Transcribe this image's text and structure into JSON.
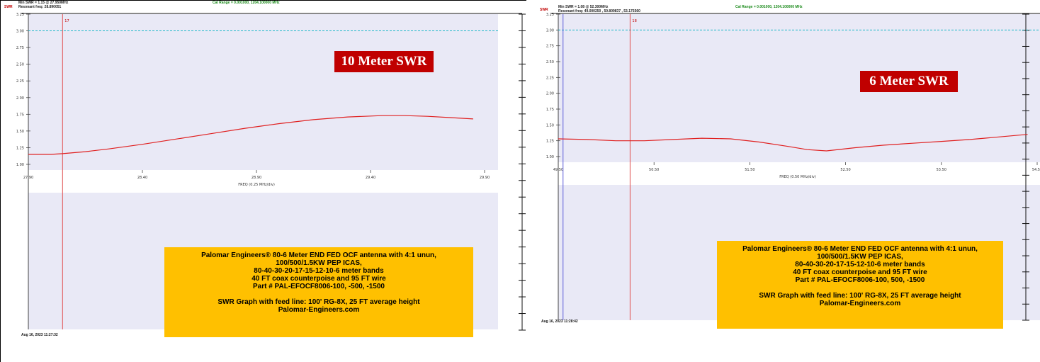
{
  "panels": [
    {
      "header": {
        "swr_label": "SWR",
        "min_swr": "Min SWR =  1.15 @ 27.950MHz",
        "resonant": "Resonant freq: 28.890051",
        "cal_range": "Cal Range = 0.001000, 1204.100000 MHz"
      },
      "badge": "10 Meter SWR",
      "timestamp": "Aug 16, 2023  11:27:32",
      "marker_label": "17",
      "info": {
        "lines": [
          "Palomar Engineers® 80-6 Meter END FED OCF antenna with 4:1 unun,",
          "100/500/1.5KW PEP ICAS,",
          "80-40-30-20-17-15-12-10-6 meter bands",
          "40 FT coax counterpoise and 95 FT wire",
          "Part # PAL-EFOCF8006-100, -500, -1500"
        ],
        "footer1": "SWR Graph with feed line: 100' RG-8X, 25 FT average height",
        "footer2": "Palomar-Engineers.com"
      }
    },
    {
      "header": {
        "swr_label": "SWR",
        "min_swr": "Min SWR =  1.08 @ 52.300MHz",
        "resonant": "Resonant freq: 49.000250 , 50.809837 , 53.175560",
        "cal_range": "Cal Range = 0.001000, 1204.100000 MHz"
      },
      "badge": "6 Meter SWR",
      "timestamp": "Aug 16, 2023  11:28:42",
      "marker_label": "18",
      "info": {
        "lines": [
          "Palomar Engineers® 80-6 Meter END FED OCF antenna with 4:1 unun,",
          "100/500/1.5KW PEP ICAS,",
          "80-40-30-20-17-15-12-10-6 meter bands",
          "40 FT coax counterpoise and 95 FT wire",
          "Part # PAL-EFOCF8006-100,  500, -1500"
        ],
        "footer1": "SWR Graph with feed line: 100' RG-8X, 25 FT average height",
        "footer2": "Palomar-Engineers.com"
      }
    }
  ],
  "chart_data": [
    {
      "type": "line",
      "title": "10 Meter SWR",
      "xlabel": "FREQ (0.25 MHz/div)",
      "ylabel": "SWR",
      "xlim": [
        27.9,
        29.9
      ],
      "ylim": [
        1.0,
        3.25
      ],
      "xticks": [
        "27.90",
        "28.40",
        "28.90",
        "29.40",
        "29.90"
      ],
      "yticks": [
        "3.25",
        "3.00",
        "2.75",
        "2.50",
        "2.25",
        "2.00",
        "1.75",
        "1.50",
        "1.25",
        "1.00"
      ],
      "threshold": 3.0,
      "marker_freq": 28.05,
      "series": [
        {
          "color": "#e02020",
          "x": [
            27.9,
            28.0,
            28.05,
            28.15,
            28.25,
            28.4,
            28.55,
            28.7,
            28.85,
            29.0,
            29.15,
            29.3,
            29.45,
            29.55,
            29.65,
            29.75,
            29.85
          ],
          "y": [
            1.15,
            1.15,
            1.16,
            1.19,
            1.23,
            1.3,
            1.38,
            1.46,
            1.54,
            1.61,
            1.67,
            1.71,
            1.73,
            1.73,
            1.72,
            1.7,
            1.68
          ]
        }
      ]
    },
    {
      "type": "line",
      "title": "6 Meter SWR",
      "xlabel": "FREQ (0.50 MHz/div)",
      "ylabel": "SWR",
      "xlim": [
        49.5,
        54.5
      ],
      "ylim": [
        1.0,
        3.25
      ],
      "xticks": [
        "49.50",
        "50.50",
        "51.50",
        "52.50",
        "53.50",
        "54.50"
      ],
      "yticks": [
        "3.25",
        "3.00",
        "2.75",
        "2.50",
        "2.25",
        "2.00",
        "1.75",
        "1.50",
        "1.25",
        "1.00"
      ],
      "threshold": 3.0,
      "marker_freq": 50.25,
      "marker2_freq": 49.55,
      "series": [
        {
          "color": "#e02020",
          "x": [
            49.5,
            49.8,
            50.1,
            50.4,
            50.7,
            51.0,
            51.3,
            51.6,
            51.9,
            52.1,
            52.3,
            52.6,
            52.9,
            53.2,
            53.5,
            53.8,
            54.1,
            54.4
          ],
          "y": [
            1.28,
            1.27,
            1.25,
            1.25,
            1.27,
            1.29,
            1.28,
            1.23,
            1.16,
            1.11,
            1.09,
            1.14,
            1.18,
            1.21,
            1.24,
            1.27,
            1.31,
            1.35
          ]
        }
      ]
    }
  ]
}
